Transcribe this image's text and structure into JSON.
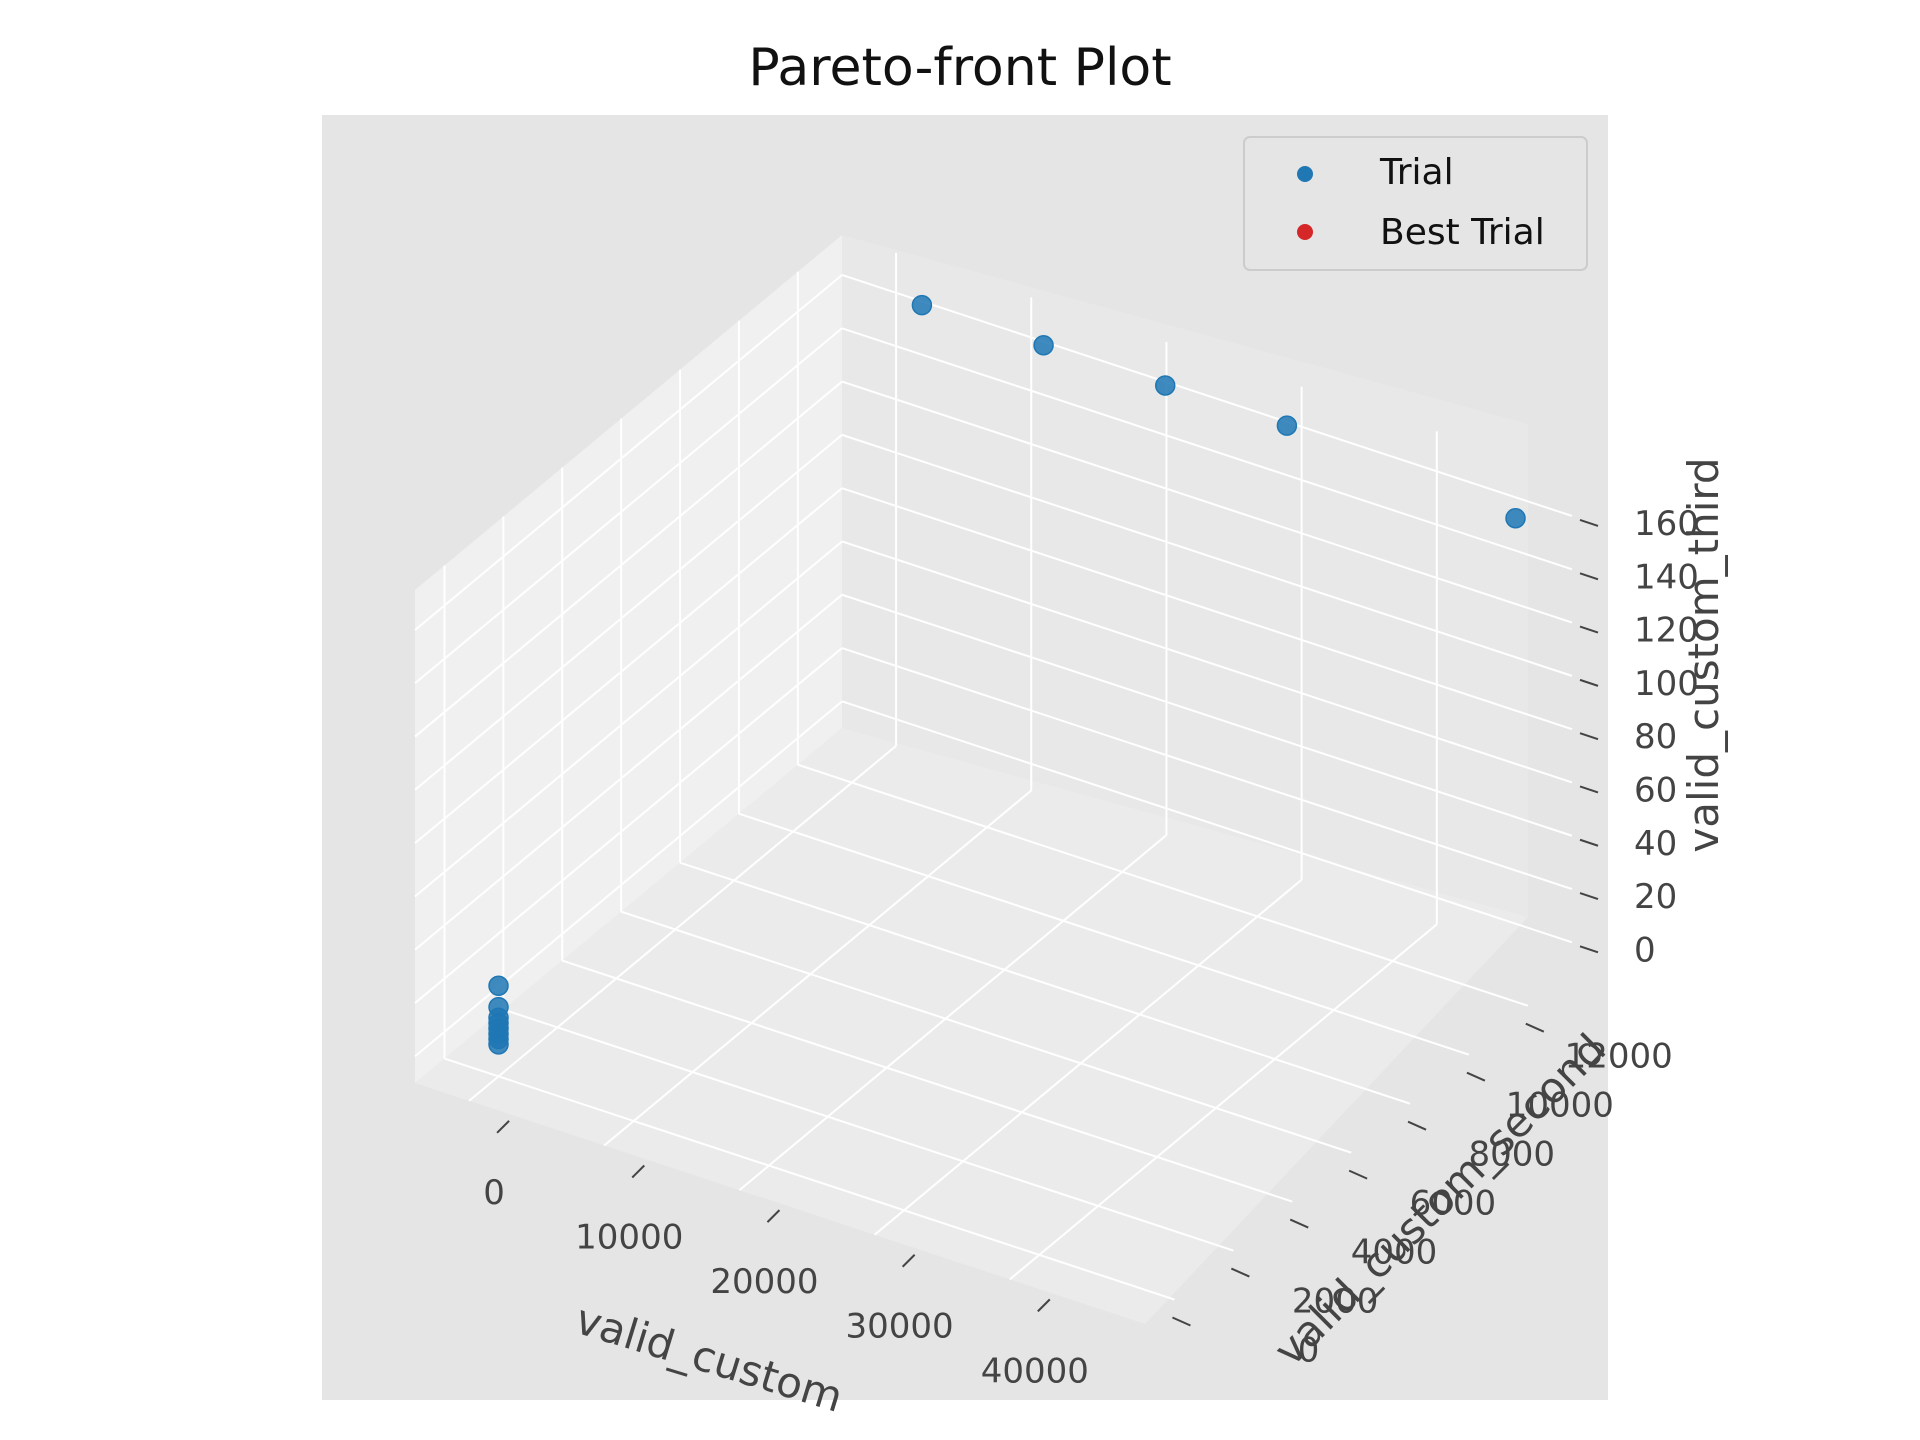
{
  "chart_data": {
    "type": "scatter",
    "projection": "3d",
    "title": "Pareto-front Plot",
    "xlabel": "valid_custom",
    "ylabel": "valid_custom_second",
    "zlabel": "valid_custom_third",
    "xticks": [
      "0",
      "10000",
      "20000",
      "30000",
      "40000"
    ],
    "yticks": [
      "0",
      "2000",
      "4000",
      "6000",
      "8000",
      "10000",
      "12000"
    ],
    "zticks": [
      "0",
      "20",
      "40",
      "60",
      "80",
      "100",
      "120",
      "140",
      "160"
    ],
    "xlim": [
      -4000,
      50000
    ],
    "ylim": [
      -1000,
      13500
    ],
    "zlim": [
      -10,
      175
    ],
    "grid": true,
    "legend": {
      "position": "top-right",
      "entries": [
        "Trial",
        "Best Trial"
      ]
    },
    "colors": {
      "Trial": "#1f77b4",
      "Best Trial": "#d62728"
    },
    "series": [
      {
        "name": "Trial",
        "x": [
          0,
          0,
          0,
          0,
          0,
          0,
          0,
          0,
          3000,
          12000,
          21000,
          30000,
          48000
        ],
        "y": [
          0,
          0,
          0,
          0,
          0,
          0,
          0,
          0,
          13000,
          13000,
          13000,
          13000,
          12500
        ],
        "z": [
          2,
          4,
          6,
          8,
          10,
          12,
          16,
          24,
          165,
          165,
          165,
          165,
          165
        ]
      },
      {
        "name": "Best Trial",
        "x": [],
        "y": [],
        "z": []
      }
    ]
  }
}
